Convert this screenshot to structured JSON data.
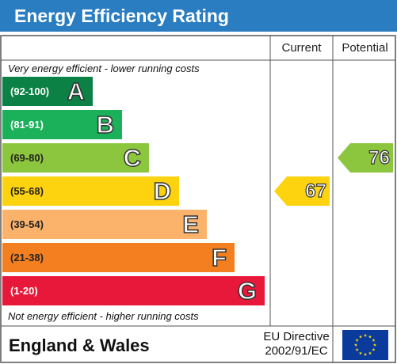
{
  "header": {
    "title": "Energy Efficiency Rating"
  },
  "columns": {
    "current": "Current",
    "potential": "Potential"
  },
  "notes": {
    "top": "Very energy efficient - lower running costs",
    "bottom": "Not energy efficient - higher running costs"
  },
  "chart_data": {
    "type": "bar",
    "bands": [
      {
        "letter": "A",
        "range": "(92-100)",
        "color": "#0c8145"
      },
      {
        "letter": "B",
        "range": "(81-91)",
        "color": "#1bb15a"
      },
      {
        "letter": "C",
        "range": "(69-80)",
        "color": "#8cc63e"
      },
      {
        "letter": "D",
        "range": "(55-68)",
        "color": "#fdd20f"
      },
      {
        "letter": "E",
        "range": "(39-54)",
        "color": "#fbb36c"
      },
      {
        "letter": "F",
        "range": "(21-38)",
        "color": "#f47f20"
      },
      {
        "letter": "G",
        "range": "(1-20)",
        "color": "#e8183a"
      }
    ],
    "current": {
      "value": "67",
      "band": "D",
      "color": "#fdd20f"
    },
    "potential": {
      "value": "76",
      "band": "C",
      "color": "#8cc63e"
    }
  },
  "footer": {
    "country": "England & Wales",
    "directive_line1": "EU Directive",
    "directive_line2": "2002/91/EC"
  },
  "colors": {
    "header": "#2a7dc1",
    "eu_flag": "#0a3a9c",
    "eu_stars": "#ffdd00"
  }
}
